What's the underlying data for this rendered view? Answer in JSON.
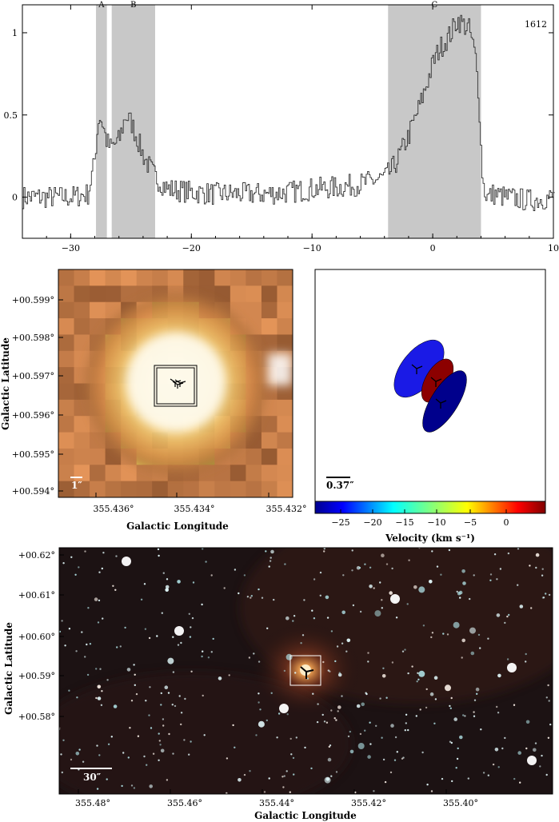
{
  "spectrum": {
    "source_id": "1612",
    "x_ticks": [
      "−30",
      "−20",
      "−10",
      "0",
      "10"
    ],
    "x_tick_values": [
      -30,
      -20,
      -10,
      0,
      10
    ],
    "y_ticks": [
      "0",
      "0.5",
      "1"
    ],
    "y_tick_values": [
      0,
      0.5,
      1
    ],
    "xlim": [
      -34,
      10
    ],
    "ylim": [
      -0.25,
      1.17
    ],
    "shaded_regions": [
      {
        "label": "A",
        "start": -27.9,
        "end": -27.0
      },
      {
        "label": "B",
        "start": -26.6,
        "end": -23.0
      },
      {
        "label": "C",
        "start": -3.7,
        "end": 4.0
      }
    ]
  },
  "chart_data": {
    "type": "line",
    "title": "",
    "xlabel": "",
    "ylabel": "",
    "xlim": [
      -34,
      10
    ],
    "ylim": [
      -0.25,
      1.17
    ],
    "grid": false,
    "series": [
      {
        "x": [
          -34,
          -32,
          -30,
          -28.6,
          -28.1,
          -27.7,
          -27.4,
          -27.1,
          -26.8,
          -26.4,
          -26.0,
          -25.5,
          -25.0,
          -24.5,
          -24.0,
          -23.5,
          -23.0,
          -22.0,
          -20.0,
          -18.0,
          -16.0,
          -14.0,
          -12.0,
          -10.0,
          -8.0,
          -6.0,
          -5.0,
          -4.0,
          -3.5,
          -3.0,
          -2.5,
          -2.0,
          -1.5,
          -1.0,
          -0.5,
          0.0,
          0.5,
          1.0,
          1.5,
          2.0,
          2.5,
          3.0,
          3.5,
          3.8,
          4.0,
          4.2,
          4.5,
          5.0,
          6.0,
          8.0,
          10.0
        ],
        "y": [
          0.0,
          0.0,
          0.0,
          0.02,
          0.2,
          0.5,
          0.45,
          0.35,
          0.3,
          0.32,
          0.35,
          0.5,
          0.45,
          0.35,
          0.25,
          0.18,
          0.12,
          0.05,
          0.03,
          0.02,
          0.02,
          0.02,
          0.03,
          0.05,
          0.06,
          0.08,
          0.1,
          0.12,
          0.16,
          0.22,
          0.3,
          0.38,
          0.48,
          0.58,
          0.7,
          0.82,
          0.9,
          0.95,
          1.0,
          1.08,
          1.05,
          1.02,
          0.85,
          0.6,
          0.2,
          0.05,
          0.0,
          0.02,
          0.0,
          -0.02,
          0.0
        ]
      }
    ]
  },
  "panel_left": {
    "ylabel": "Galactic Latitude",
    "xlabel": "Galactic Longitude",
    "y_ticks": [
      "+00.599°",
      "+00.598°",
      "+00.597°",
      "+00.596°",
      "+00.595°",
      "+00.594°"
    ],
    "x_ticks": [
      "355.436°",
      "355.434°",
      "355.432°"
    ],
    "scale_bar": "1″"
  },
  "panel_right": {
    "scale_bar": "0.37″",
    "colorbar_ticks": [
      "−25",
      "−20",
      "−15",
      "−10",
      "−5",
      "0"
    ],
    "colorbar_label": "Velocity (km s⁻¹)",
    "maser_colors": [
      "#1a1ae6",
      "#8c0000",
      "#00008c"
    ]
  },
  "panel_bottom": {
    "ylabel": "Galactic Latitude",
    "xlabel": "Galactic Longitude",
    "y_ticks": [
      "+00.62°",
      "+00.61°",
      "+00.60°",
      "+00.59°",
      "+00.58°"
    ],
    "x_ticks": [
      "355.48°",
      "355.46°",
      "355.44°",
      "355.42°",
      "355.40°"
    ],
    "scale_bar": "30″"
  }
}
